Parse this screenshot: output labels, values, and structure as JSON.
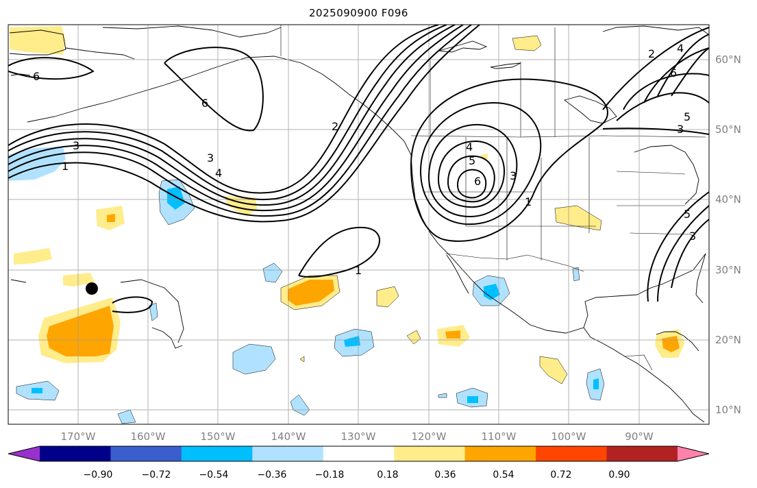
{
  "title": "2025090900 F096",
  "map": {
    "lon_range": [
      -180,
      -80
    ],
    "lat_range": [
      8,
      65
    ],
    "lon_labels": [
      "170°W",
      "160°W",
      "150°W",
      "140°W",
      "130°W",
      "120°W",
      "110°W",
      "100°W",
      "90°W"
    ],
    "lat_labels": [
      "10°N",
      "20°N",
      "30°N",
      "40°N",
      "50°N",
      "60°N"
    ],
    "marker": {
      "lon": -168,
      "lat": 27.5,
      "color": "#000000"
    },
    "contour_labels": [
      "6",
      "6",
      "3",
      "1",
      "3",
      "4",
      "2",
      "1",
      "4",
      "5",
      "6",
      "3",
      "1",
      "2",
      "6",
      "5",
      "3",
      "4",
      "5",
      "3"
    ]
  },
  "colorbar": {
    "colors": [
      "#9932cc",
      "#00008b",
      "#3a5fcd",
      "#00bfff",
      "#b0e2ff",
      "#ffffff",
      "#ffec8b",
      "#ffa500",
      "#ff4500",
      "#b22222",
      "#ff82ab"
    ],
    "ticks": [
      "−0.90",
      "−0.72",
      "−0.54",
      "−0.36",
      "−0.18",
      "0.18",
      "0.36",
      "0.54",
      "0.72",
      "0.90"
    ]
  }
}
